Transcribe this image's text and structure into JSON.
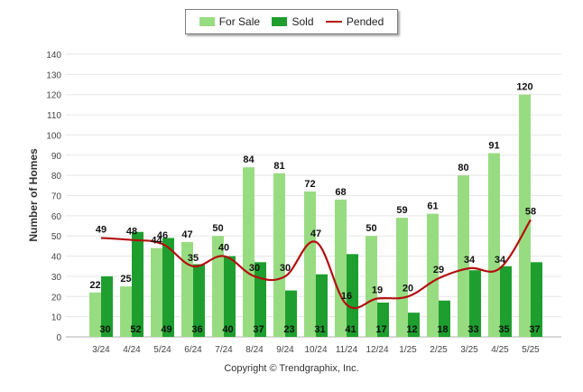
{
  "chart_data": {
    "type": "bar",
    "categories": [
      "3/24",
      "4/24",
      "5/24",
      "6/24",
      "7/24",
      "8/24",
      "9/24",
      "10/24",
      "11/24",
      "12/24",
      "1/25",
      "2/25",
      "3/25",
      "4/25",
      "5/25"
    ],
    "series": [
      {
        "name": "For Sale",
        "type": "bar",
        "color": "#98dc82",
        "values": [
          22,
          25,
          44,
          47,
          50,
          84,
          81,
          72,
          68,
          50,
          59,
          61,
          80,
          91,
          120
        ]
      },
      {
        "name": "Sold",
        "type": "bar",
        "color": "#1e9e2e",
        "values": [
          30,
          52,
          49,
          36,
          40,
          37,
          23,
          31,
          41,
          17,
          12,
          18,
          33,
          35,
          37
        ]
      },
      {
        "name": "Pended",
        "type": "line",
        "color": "#b30f0f",
        "values": [
          49,
          48,
          46,
          35,
          40,
          30,
          30,
          47,
          16,
          19,
          20,
          29,
          34,
          34,
          58
        ]
      }
    ],
    "ylabel": "Number of Homes",
    "xlabel": "",
    "ylim": [
      0,
      140
    ],
    "yticks": [
      0,
      10,
      20,
      30,
      40,
      50,
      60,
      70,
      80,
      90,
      100,
      110,
      120,
      130,
      140
    ],
    "grid": true,
    "legend": "top-center"
  },
  "footer": "Copyright © Trendgraphix, Inc."
}
